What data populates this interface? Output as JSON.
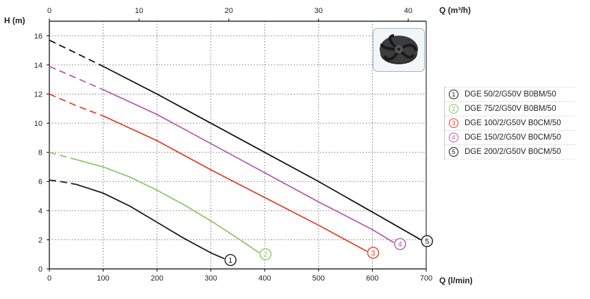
{
  "chart_data": {
    "type": "line",
    "title": "",
    "xlabel": "Q (l/min)",
    "x2label": "Q (m³/h)",
    "ylabel": "H (m)",
    "xlim": [
      0,
      700
    ],
    "x2lim": [
      0,
      42
    ],
    "ylim": [
      0,
      17
    ],
    "xticks": [
      "0",
      "100",
      "200",
      "300",
      "400",
      "500",
      "600",
      "700"
    ],
    "x2ticks": [
      "0",
      "10",
      "20",
      "30",
      "40"
    ],
    "yticks": [
      "0",
      "2",
      "4",
      "6",
      "8",
      "10",
      "12",
      "14",
      "16"
    ],
    "grid": true,
    "legend_position": "right",
    "series": [
      {
        "marker": "1",
        "name": "DGE 50/2/G50V B0BM/50",
        "color": "#1a1a1a",
        "x": [
          0,
          20,
          50,
          100,
          150,
          200,
          250,
          300,
          325
        ],
        "y": [
          6.1,
          6.0,
          5.8,
          5.2,
          4.3,
          3.2,
          2.1,
          1.1,
          0.7
        ]
      },
      {
        "marker": "2",
        "name": "DGE 75/2/G50V B0BM/50",
        "color": "#8fc46a",
        "x": [
          0,
          20,
          50,
          100,
          150,
          200,
          250,
          300,
          350,
          390
        ],
        "y": [
          8.0,
          7.8,
          7.5,
          7.0,
          6.3,
          5.4,
          4.4,
          3.3,
          2.1,
          1.1
        ]
      },
      {
        "marker": "3",
        "name": "DGE 100/2/G50V B0CM/50",
        "color": "#e0402a",
        "x": [
          0,
          50,
          100,
          200,
          300,
          400,
          500,
          590
        ],
        "y": [
          12.0,
          11.2,
          10.5,
          8.8,
          6.8,
          4.9,
          3.0,
          1.2
        ]
      },
      {
        "marker": "4",
        "name": "DGE 150/2/G50V B0CM/50",
        "color": "#b55bb0",
        "x": [
          0,
          50,
          100,
          200,
          300,
          400,
          500,
          600,
          640
        ],
        "y": [
          13.9,
          13.1,
          12.3,
          10.6,
          8.6,
          6.6,
          4.6,
          2.7,
          1.8
        ]
      },
      {
        "marker": "5",
        "name": "DGE 200/2/G50V B0CM/50",
        "color": "#111111",
        "x": [
          0,
          50,
          100,
          200,
          300,
          400,
          500,
          600,
          690
        ],
        "y": [
          15.7,
          14.8,
          13.9,
          12.0,
          10.0,
          8.0,
          6.0,
          3.9,
          2.0
        ]
      }
    ]
  },
  "image": {
    "icon": "pump-impeller-icon"
  }
}
